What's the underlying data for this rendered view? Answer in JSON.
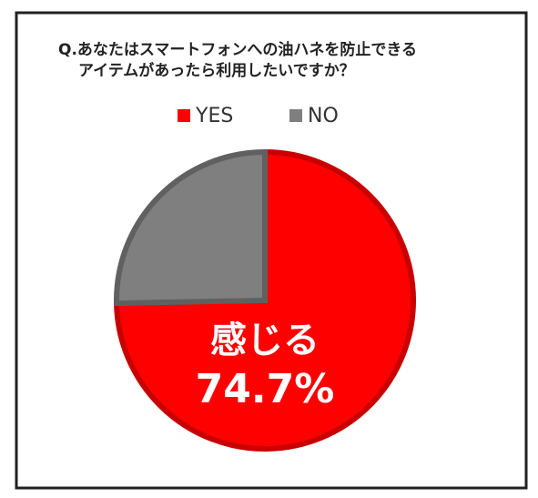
{
  "chart_data": {
    "type": "pie",
    "title": [
      "Q.あなたはスマートフォンへの油ハネを防止できる",
      "アイテムがあったら利用したいですか？"
    ],
    "categories": [
      "YES",
      "NO"
    ],
    "values": [
      74.7,
      25.3
    ],
    "value_labels": [
      "74.7%",
      null
    ],
    "annotation": "感じる",
    "colors": [
      "#ff0000",
      "#7f7f7f"
    ],
    "legend": "top"
  }
}
